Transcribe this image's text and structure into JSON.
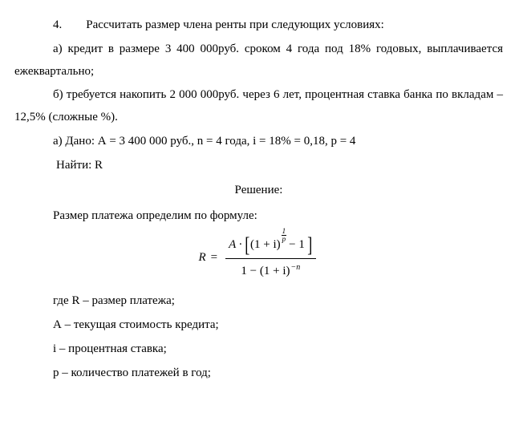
{
  "t1": "4.  Рассчитать размер члена ренты при следующих условиях:",
  "t2": "а) кредит в размере 3 400 000руб. сроком 4 года под 18% годовых, выплачивается ежеквартально;",
  "t3": "б) требуется накопить 2 000 000руб. через 6 лет, процентная ставка банка по вкладам – 12,5% (сложные %).",
  "t4": "а) Дано: А = 3 400 000 руб., n = 4 года, i = 18% = 0,18, p = 4",
  "t5": "Найти: R",
  "t6": "Решение:",
  "t7": "Размер платежа определим по формуле:",
  "formula": {
    "R": "R",
    "A": "A",
    "oneplus_i": "(1 + i)",
    "sup_n": "1",
    "sup_d": "p",
    "minus1": "− 1",
    "den_one": "1 − (1 + i)",
    "den_exp": "−n"
  },
  "t8": "где R – размер платежа;",
  "t9": "А – текущая стоимость кредита;",
  "t10": "i – процентная ставка;",
  "t11": "p – количество платежей в год;"
}
